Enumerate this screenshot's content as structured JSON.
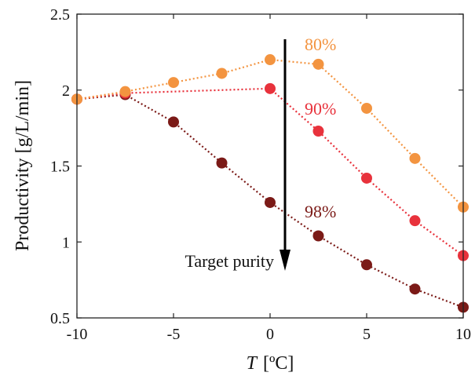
{
  "chart_data": {
    "type": "line",
    "x": [
      -10,
      -7.5,
      -5,
      -2.5,
      0,
      2.5,
      5,
      7.5,
      10
    ],
    "xlabel_var": "T",
    "xlabel_unit": "[ºC]",
    "ylabel": "Productivity [g/L/min]",
    "xlim": [
      -10,
      10
    ],
    "ylim": [
      0.5,
      2.5
    ],
    "xticks": [
      -10,
      -5,
      0,
      5,
      10
    ],
    "yticks": [
      0.5,
      1,
      1.5,
      2,
      2.5
    ],
    "xtick_labels": [
      "-10",
      "-5",
      "0",
      "5",
      "10"
    ],
    "ytick_labels": [
      "0.5",
      "1",
      "1.5",
      "2",
      "2.5"
    ],
    "grid": false,
    "series": [
      {
        "name": "80%",
        "color": "#F39440",
        "values": [
          1.94,
          1.99,
          2.05,
          2.11,
          2.2,
          2.17,
          1.88,
          1.55,
          1.23
        ]
      },
      {
        "name": "90%",
        "color": "#E8323C",
        "values": [
          1.94,
          1.98,
          null,
          null,
          2.01,
          1.73,
          1.42,
          1.14,
          0.91
        ]
      },
      {
        "name": "98%",
        "color": "#7B1A17",
        "values": [
          1.94,
          1.97,
          1.79,
          1.52,
          1.26,
          1.04,
          0.85,
          0.69,
          0.57
        ]
      }
    ],
    "annotation": {
      "text": "Target purity",
      "arrow": "down"
    }
  }
}
